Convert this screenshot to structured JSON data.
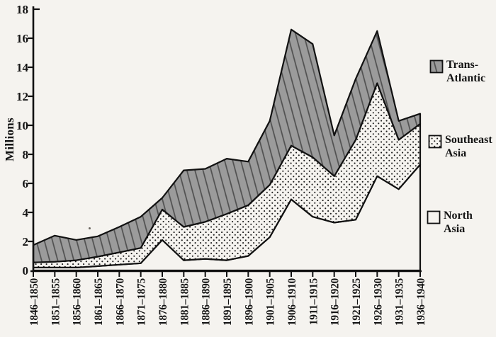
{
  "figure": {
    "paper_color": "#f5f3ef",
    "ink_color": "#141414"
  },
  "chart_data": {
    "type": "area",
    "stacked": true,
    "title": "",
    "xlabel": "",
    "ylabel": "Millions",
    "ylim": [
      0,
      18
    ],
    "yticks": [
      0,
      2,
      4,
      6,
      8,
      10,
      12,
      14,
      16,
      18
    ],
    "grid": false,
    "legend_position": "right",
    "categories": [
      "1846–1850",
      "1851–1855",
      "1856–1860",
      "1861–1865",
      "1866–1870",
      "1871–1875",
      "1876–1880",
      "1881–1885",
      "1886–1890",
      "1891–1895",
      "1896–1900",
      "1901–1905",
      "1906–1910",
      "1911–1915",
      "1916–1920",
      "1921–1925",
      "1926–1930",
      "1931–1935",
      "1936–1940"
    ],
    "series": [
      {
        "name": "North Asia",
        "pattern": "plain-white",
        "values": [
          0.2,
          0.2,
          0.2,
          0.3,
          0.4,
          0.5,
          2.1,
          0.7,
          0.8,
          0.7,
          1.0,
          2.3,
          4.9,
          3.7,
          3.3,
          3.5,
          6.5,
          5.6,
          7.3
        ]
      },
      {
        "name": "Southeast Asia",
        "pattern": "dots",
        "values": [
          0.35,
          0.4,
          0.5,
          0.65,
          0.85,
          1.05,
          2.1,
          2.3,
          2.55,
          3.2,
          3.5,
          3.6,
          3.7,
          4.1,
          3.2,
          5.5,
          6.4,
          3.4,
          2.8
        ]
      },
      {
        "name": "Trans-Atlantic",
        "pattern": "hatch-gray",
        "values": [
          1.2,
          1.8,
          1.4,
          1.4,
          1.75,
          2.15,
          0.8,
          3.9,
          3.65,
          3.8,
          3.0,
          4.4,
          8.0,
          7.8,
          2.8,
          4.2,
          3.6,
          1.3,
          0.7
        ]
      }
    ],
    "stacked_totals": [
      1.75,
      2.4,
      2.1,
      2.35,
      3.0,
      3.7,
      5.0,
      6.9,
      7.0,
      7.7,
      7.5,
      10.3,
      16.6,
      15.6,
      9.3,
      13.2,
      16.5,
      10.3,
      10.8
    ],
    "legend": [
      {
        "line1": "Trans-",
        "line2": "Atlantic",
        "pattern": "hatch-gray"
      },
      {
        "line1": "Southeast",
        "line2": "Asia",
        "pattern": "dots"
      },
      {
        "line1": "North",
        "line2": "Asia",
        "pattern": "plain-white"
      }
    ],
    "colors": {
      "area_gray": "#9b9b9b",
      "hatch_line": "#4f4f4f",
      "dot": "#1c1c1c",
      "outline": "#111111",
      "axis": "#111111",
      "paper": "#f5f3ef"
    }
  }
}
